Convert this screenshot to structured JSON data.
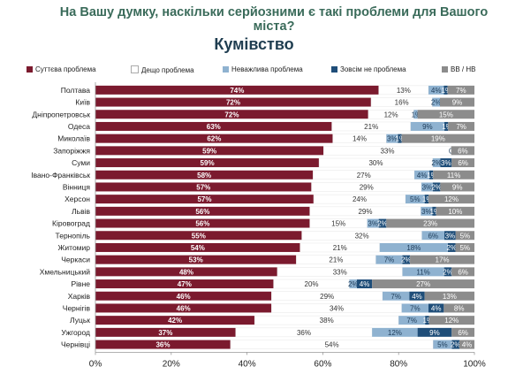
{
  "chart_data": {
    "type": "bar",
    "orientation": "horizontal",
    "stacked": true,
    "title": "На Вашу думку, наскільки серйозними є такі проблеми  для Вашого міста?",
    "subtitle": "Кумівство",
    "categories": [
      "Полтава",
      "Київ",
      "Дніпропетровськ",
      "Одеса",
      "Миколаїв",
      "Запоріжжя",
      "Суми",
      "Івано-Франківськ",
      "Вінниця",
      "Херсон",
      "Львів",
      "Кіровоград",
      "Тернопіль",
      "Житомир",
      "Черкаси",
      "Хмельницький",
      "Рівне",
      "Харків",
      "Чернігів",
      "Луцьк",
      "Ужгород",
      "Чернівці"
    ],
    "series": [
      {
        "name": "Суттєва проблема",
        "color": "#7b1a2e",
        "values": [
          74,
          72,
          72,
          63,
          62,
          59,
          59,
          58,
          57,
          57,
          56,
          56,
          55,
          54,
          53,
          48,
          47,
          46,
          46,
          42,
          37,
          36
        ]
      },
      {
        "name": "Дещо проблема",
        "color": "#ffffff",
        "values": [
          13,
          16,
          12,
          21,
          14,
          33,
          30,
          27,
          29,
          24,
          29,
          15,
          32,
          21,
          21,
          33,
          20,
          29,
          34,
          38,
          36,
          54
        ]
      },
      {
        "name": "Неважлива проблема",
        "color": "#8fb2d0",
        "values": [
          4,
          2,
          1,
          9,
          3,
          0,
          2,
          4,
          3,
          5,
          3,
          3,
          6,
          18,
          7,
          11,
          2,
          7,
          7,
          7,
          12,
          5
        ]
      },
      {
        "name": "Зовсім не проблема",
        "color": "#1f4e79",
        "values": [
          1,
          0,
          0,
          1,
          1,
          0,
          3,
          1,
          2,
          1,
          1,
          2,
          3,
          2,
          2,
          2,
          4,
          4,
          4,
          1,
          9,
          2
        ]
      },
      {
        "name": "ВВ / НВ",
        "color": "#8c8c8c",
        "values": [
          7,
          9,
          15,
          7,
          19,
          6,
          6,
          11,
          9,
          12,
          10,
          23,
          5,
          5,
          17,
          6,
          27,
          13,
          8,
          12,
          6,
          4
        ]
      }
    ],
    "labels": [
      [
        "74%",
        "13%",
        "4%",
        "1%",
        "7%"
      ],
      [
        "72%",
        "16%",
        "2%",
        "",
        "9%"
      ],
      [
        "72%",
        "12%",
        "1%",
        "",
        "15%"
      ],
      [
        "63%",
        "21%",
        "9%",
        "1%",
        "7%"
      ],
      [
        "62%",
        "14%",
        "3%",
        "1%",
        "19%"
      ],
      [
        "59%",
        "33%",
        "0%",
        "",
        "6%"
      ],
      [
        "59%",
        "30%",
        "2%",
        "3%",
        "6%"
      ],
      [
        "58%",
        "27%",
        "4%",
        "1%",
        "11%"
      ],
      [
        "57%",
        "29%",
        "3%",
        "2%",
        "9%"
      ],
      [
        "57%",
        "24%",
        "5%",
        "1%",
        "12%"
      ],
      [
        "56%",
        "29%",
        "3%",
        "1%",
        "10%"
      ],
      [
        "56%",
        "15%",
        "3%",
        "2%",
        "23%"
      ],
      [
        "55%",
        "32%",
        "6%",
        "3%",
        "5%"
      ],
      [
        "54%",
        "21%",
        "18%",
        "2%",
        "5%"
      ],
      [
        "53%",
        "21%",
        "7%",
        "2%",
        "17%"
      ],
      [
        "48%",
        "33%",
        "11%",
        "2%",
        "6%"
      ],
      [
        "47%",
        "20%",
        "2%",
        "4%",
        "27%"
      ],
      [
        "46%",
        "29%",
        "7%",
        "4%",
        "13%"
      ],
      [
        "46%",
        "34%",
        "7%",
        "4%",
        "8%"
      ],
      [
        "42%",
        "38%",
        "7%",
        "1%",
        "12%"
      ],
      [
        "37%",
        "36%",
        "12%",
        "9%",
        "6%"
      ],
      [
        "36%",
        "54%",
        "5%",
        "2%",
        "4%"
      ]
    ],
    "xlim": [
      0,
      100
    ],
    "xticks": [
      "0%",
      "20%",
      "40%",
      "60%",
      "80%",
      "100%"
    ],
    "legend_position": "top",
    "grid": false
  }
}
